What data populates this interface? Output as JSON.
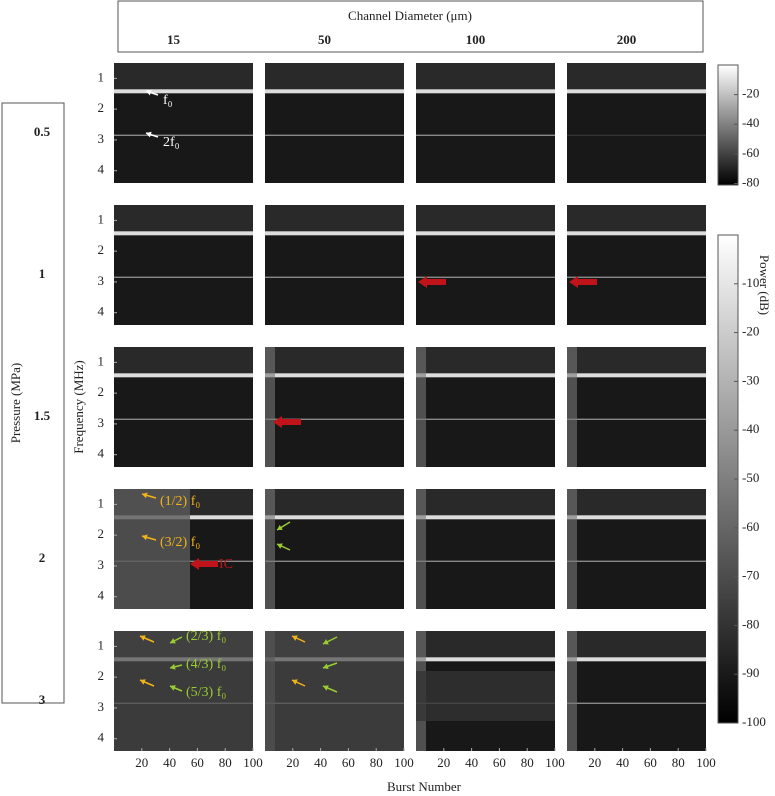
{
  "header": {
    "title": "Channel Diameter (μm)",
    "columns": [
      "15",
      "50",
      "100",
      "200"
    ]
  },
  "rows": {
    "label": "Pressure (MPa)",
    "values": [
      "0.5",
      "1",
      "1.5",
      "2",
      "3"
    ]
  },
  "y_axis": {
    "label": "Frequency (MHz)",
    "ylim": [
      0.5,
      4.4
    ],
    "yticks": [
      1,
      2,
      3,
      4
    ]
  },
  "x_axis": {
    "label": "Burst Number",
    "xlim": [
      0,
      100
    ],
    "xticks": [
      20,
      40,
      60,
      80,
      100
    ]
  },
  "colorbars": [
    {
      "ylim": [
        -81,
        0
      ],
      "yticks": [
        -20,
        -40,
        -60,
        -80
      ]
    },
    {
      "label": "Power (dB)",
      "ylim": [
        -100,
        0
      ],
      "yticks": [
        -10,
        -20,
        -30,
        -40,
        -50,
        -60,
        -70,
        -80,
        -90,
        -100
      ]
    }
  ],
  "annotations": [
    "f₀",
    "2f₀",
    "(1/2) f₀",
    "(3/2) f₀",
    "IC",
    "(2/3) f₀",
    "(4/3) f₀",
    "(5/3) f₀"
  ]
}
